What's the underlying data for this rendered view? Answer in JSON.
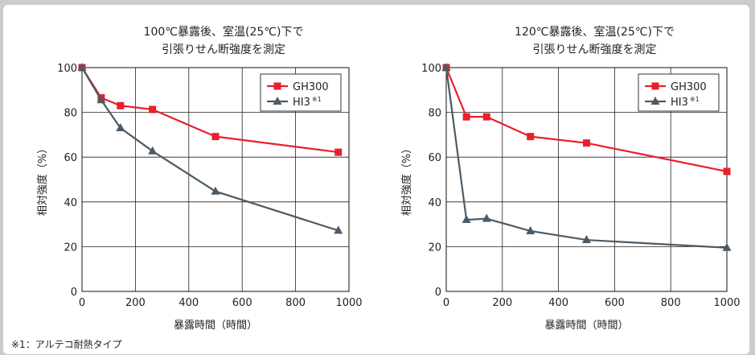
{
  "colors": {
    "gh300": "#e8202a",
    "hi3": "#4b5a66",
    "grid": "#222222"
  },
  "footnote": "※1：アルテコ耐熱タイプ",
  "chart_data": [
    {
      "type": "line",
      "title_lines": [
        "100℃暴露後、室温(25℃)下で",
        "引張りせん断強度を測定"
      ],
      "xlabel": "暴露時間（時間）",
      "ylabel": "相対強度（%）",
      "xlim": [
        0,
        1000
      ],
      "ylim": [
        0,
        100
      ],
      "xticks": [
        0,
        200,
        400,
        600,
        800,
        1000
      ],
      "yticks": [
        0,
        20,
        40,
        60,
        80,
        100
      ],
      "grid": true,
      "legend_position": "top-right",
      "series": [
        {
          "name": "GH300",
          "marker": "square",
          "color_key": "gh300",
          "points": [
            [
              0,
              100
            ],
            [
              72,
              86.5
            ],
            [
              144,
              83
            ],
            [
              264,
              81.3
            ],
            [
              500,
              69.2
            ],
            [
              960,
              62.2
            ]
          ]
        },
        {
          "name": "HI3",
          "name_sup": "※1",
          "marker": "triangle",
          "color_key": "hi3",
          "points": [
            [
              0,
              100
            ],
            [
              72,
              85.5
            ],
            [
              144,
              73
            ],
            [
              264,
              62.7
            ],
            [
              500,
              44.7
            ],
            [
              960,
              27.2
            ]
          ]
        }
      ]
    },
    {
      "type": "line",
      "title_lines": [
        "120℃暴露後、室温(25℃)下で",
        "引張りせん断強度を測定"
      ],
      "xlabel": "暴露時間（時間）",
      "ylabel": "相対強度（%）",
      "xlim": [
        0,
        1000
      ],
      "ylim": [
        0,
        100
      ],
      "xticks": [
        0,
        200,
        400,
        600,
        800,
        1000
      ],
      "yticks": [
        0,
        20,
        40,
        60,
        80,
        100
      ],
      "grid": true,
      "legend_position": "top-right",
      "series": [
        {
          "name": "GH300",
          "marker": "square",
          "color_key": "gh300",
          "points": [
            [
              0,
              100
            ],
            [
              72,
              78
            ],
            [
              144,
              78
            ],
            [
              300,
              69.2
            ],
            [
              500,
              66.3
            ],
            [
              1000,
              53.6
            ]
          ]
        },
        {
          "name": "HI3",
          "name_sup": "※1",
          "marker": "triangle",
          "color_key": "hi3",
          "points": [
            [
              0,
              100
            ],
            [
              72,
              32
            ],
            [
              144,
              32.5
            ],
            [
              300,
              27
            ],
            [
              500,
              23
            ],
            [
              1000,
              19.5
            ]
          ]
        }
      ]
    }
  ]
}
